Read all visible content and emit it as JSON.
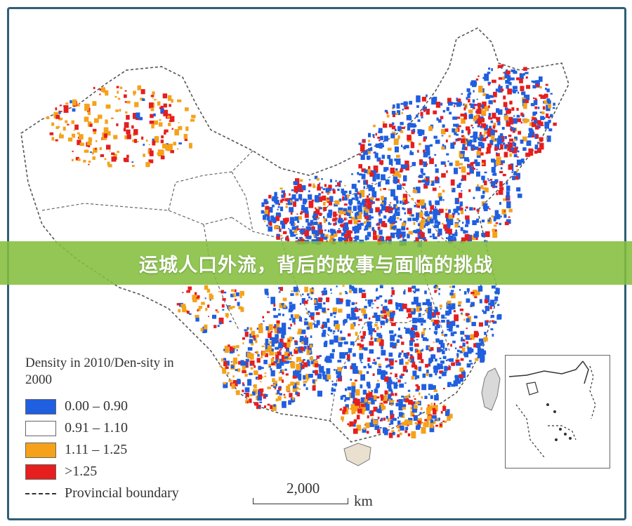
{
  "banner": {
    "title": "运城人口外流，背后的故事与面临的挑战"
  },
  "legend": {
    "title": "Density in 2010/Den-sity in 2000",
    "items": [
      {
        "label": "0.00 – 0.90",
        "color": "#1f5fe0"
      },
      {
        "label": "0.91 – 1.10",
        "color": "#ffffff"
      },
      {
        "label": "1.11 – 1.25",
        "color": "#f5a21a"
      },
      {
        "label": ">1.25",
        "color": "#e61e1e"
      }
    ],
    "boundary_label": "Provincial boundary"
  },
  "scale": {
    "value": "2,000",
    "unit": "km"
  },
  "colors": {
    "frame_border": "#2f5f75",
    "banner_bg": "#84be3e",
    "boundary": "#555555"
  }
}
